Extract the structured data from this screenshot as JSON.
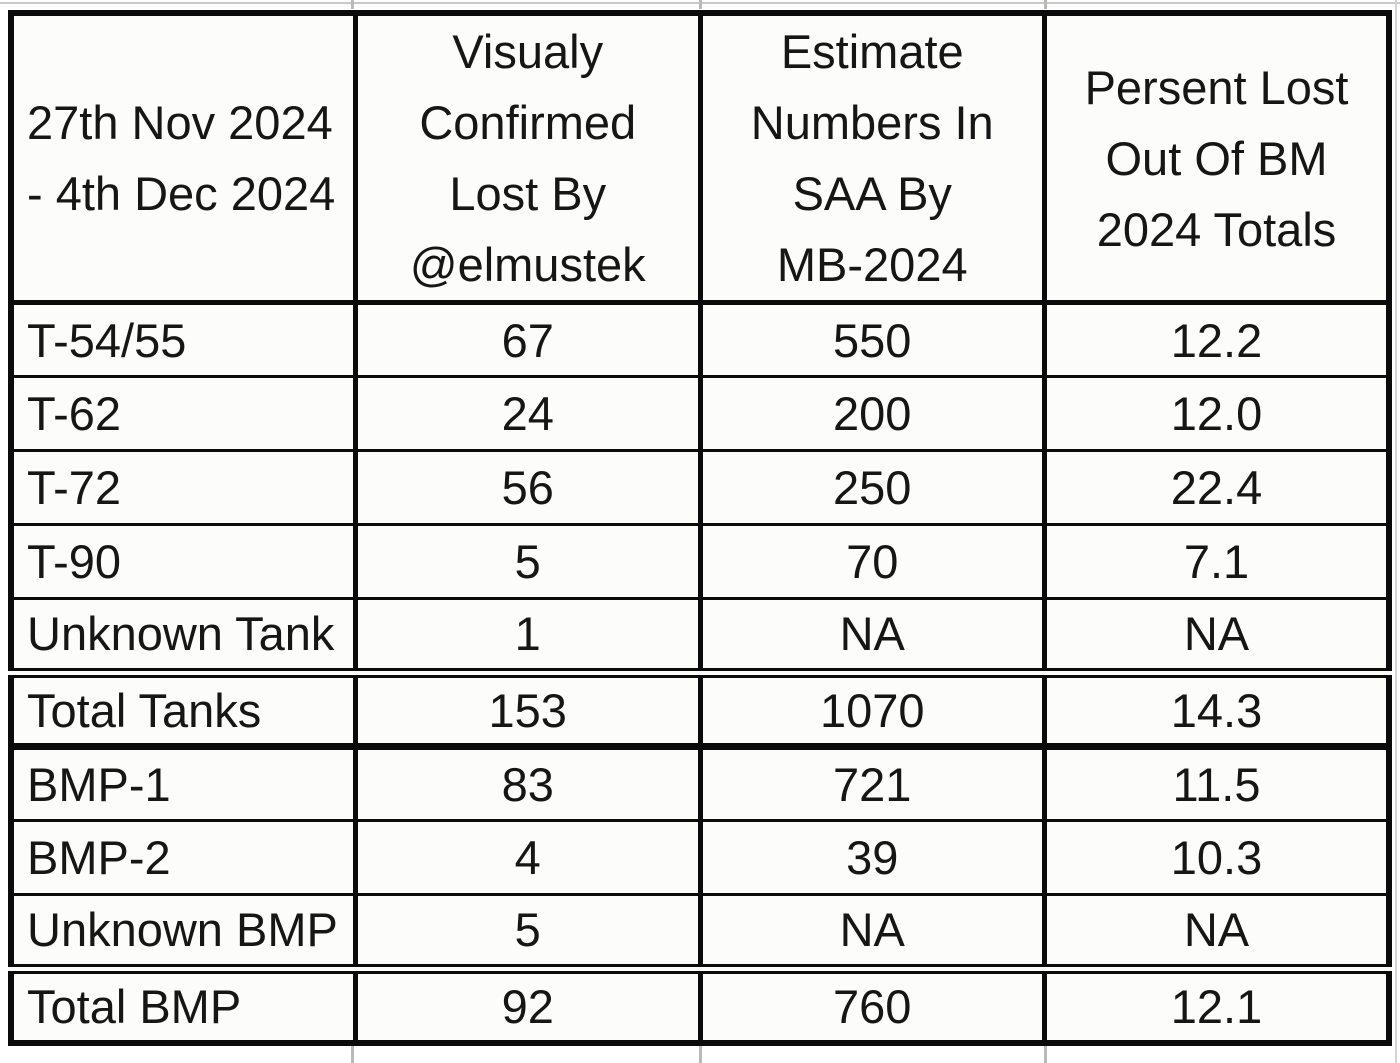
{
  "table": {
    "header": {
      "period": "27th Nov 2024\n- 4th Dec 2024",
      "confirmed": "Visualy\nConfirmed\nLost By\n@elmustek",
      "estimate": "Estimate\nNumbers In\nSAA By\nMB-2024",
      "percent": "Persent Lost\nOut Of BM\n2024 Totals"
    },
    "rows": [
      {
        "label": "T-54/55",
        "confirmed": "67",
        "estimate": "550",
        "percent": "12.2"
      },
      {
        "label": "T-62",
        "confirmed": "24",
        "estimate": "200",
        "percent": "12.0"
      },
      {
        "label": "T-72",
        "confirmed": "56",
        "estimate": "250",
        "percent": "22.4"
      },
      {
        "label": "T-90",
        "confirmed": "5",
        "estimate": "70",
        "percent": "7.1"
      },
      {
        "label": "Unknown Tank",
        "confirmed": "1",
        "estimate": "NA",
        "percent": "NA"
      },
      {
        "label": "Total Tanks",
        "confirmed": "153",
        "estimate": "1070",
        "percent": "14.3"
      },
      {
        "label": "BMP-1",
        "confirmed": "83",
        "estimate": "721",
        "percent": "11.5"
      },
      {
        "label": "BMP-2",
        "confirmed": "4",
        "estimate": "39",
        "percent": "10.3"
      },
      {
        "label": "Unknown BMP",
        "confirmed": "5",
        "estimate": "NA",
        "percent": "NA"
      },
      {
        "label": "Total BMP",
        "confirmed": "92",
        "estimate": "760",
        "percent": "12.1"
      }
    ]
  },
  "colors": {
    "border": "#0b0b0b",
    "text": "#161616",
    "cell_background": "#fcfcfa",
    "gridline": "#c9c9c7"
  }
}
